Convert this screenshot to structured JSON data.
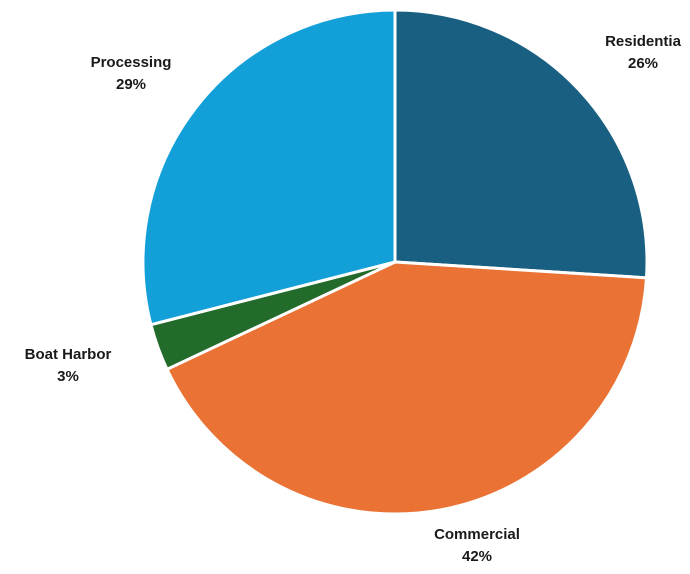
{
  "chart_data": {
    "type": "pie",
    "title": "",
    "slices": [
      {
        "label": "Residential",
        "display_label": "Residentia",
        "value": 26,
        "value_label": "26%",
        "color": "#185f82"
      },
      {
        "label": "Commercial",
        "display_label": "Commercial",
        "value": 42,
        "value_label": "42%",
        "color": "#e97234"
      },
      {
        "label": "Boat Harbor",
        "display_label": "Boat Harbor",
        "value": 3,
        "value_label": "3%",
        "color": "#226b2a"
      },
      {
        "label": "Processing",
        "display_label": "Processing",
        "value": 29,
        "value_label": "29%",
        "color": "#139fd7"
      }
    ],
    "start_angle_deg": 0,
    "direction": "clockwise",
    "legend": "none",
    "data_labels": "outside"
  }
}
